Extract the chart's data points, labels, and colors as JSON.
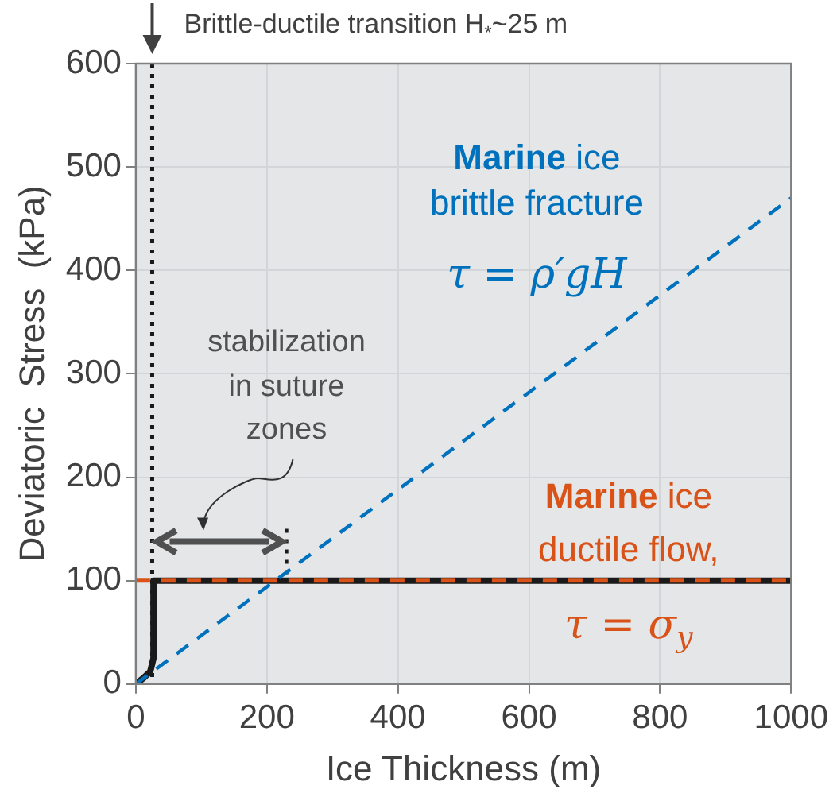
{
  "chart_data": {
    "type": "line",
    "xlabel": "Ice Thickness (m)",
    "ylabel": "Deviatoric  Stress  (kPa)",
    "xlim": [
      0,
      1000
    ],
    "xticks": [
      0,
      200,
      400,
      600,
      800,
      1000
    ],
    "ylim": [
      0,
      600
    ],
    "yticks": [
      0,
      100,
      200,
      300,
      400,
      500,
      600
    ],
    "grid": true,
    "marker": "none",
    "legend": false,
    "series": [
      {
        "color": "#0072bd",
        "x": [
          0,
          1000
        ],
        "values": [
          0,
          470
        ],
        "line_style": "dashed"
      },
      {
        "color": "#1a1a1a",
        "x": [
          0,
          12,
          22,
          27,
          27,
          1000
        ],
        "values": [
          0,
          6,
          12,
          25,
          100,
          100
        ],
        "line_style": "solid"
      },
      {
        "color": "#1a1a1a",
        "x": [
          230,
          230
        ],
        "values": [
          150,
          100
        ],
        "line_style": "dotted"
      }
    ],
    "ref_lines": [
      {
        "axis": "x",
        "value": 25,
        "label": "Brittle-ductile transition H$_{*}$~25 m",
        "color": "#1a1a1a",
        "line_style": "dotted"
      },
      {
        "axis": "y",
        "value": 100,
        "color": "#d95319",
        "line_style": "dashed"
      }
    ],
    "annotations": [
      "Marine ice",
      "brittle fracture",
      "τ = ρ′gH",
      "stabilization",
      "in suture",
      "zones",
      "Marine ice",
      "ductile flow,",
      "τ = σ$_{y}$"
    ]
  }
}
